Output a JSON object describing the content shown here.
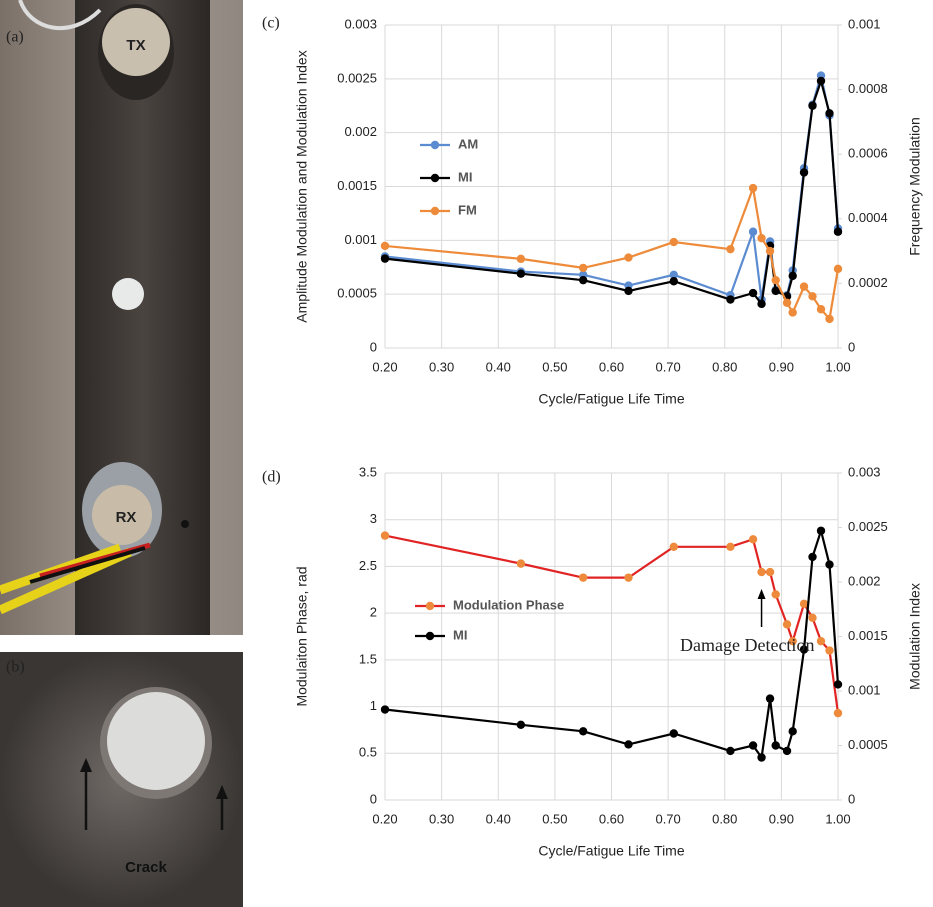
{
  "photos": {
    "a": {
      "label": "(a)",
      "texts": [
        "TX",
        "RX"
      ]
    },
    "b": {
      "label": "(b)",
      "texts": [
        "Crack"
      ]
    }
  },
  "chart_data": [
    {
      "type": "line",
      "panel_label": "(c)",
      "x_label": "Cycle/Fatigue Life Time",
      "y_label": "Amplitude Modulation and Modulation Index",
      "y2_label": "Frequency Modulation",
      "x": [
        0.2,
        0.44,
        0.55,
        0.63,
        0.71,
        0.81,
        0.85,
        0.865,
        0.88,
        0.89,
        0.91,
        0.92,
        0.94,
        0.955,
        0.97,
        0.985,
        1.0
      ],
      "xlim": [
        0.2,
        1.0
      ],
      "xticks": [
        {
          "value": 0.2,
          "label": "0.20"
        },
        {
          "value": 0.3,
          "label": "0.30"
        },
        {
          "value": 0.4,
          "label": "0.40"
        },
        {
          "value": 0.5,
          "label": "0.50"
        },
        {
          "value": 0.6,
          "label": "0.60"
        },
        {
          "value": 0.7,
          "label": "0.70"
        },
        {
          "value": 0.8,
          "label": "0.80"
        },
        {
          "value": 0.9,
          "label": "0.90"
        },
        {
          "value": 1.0,
          "label": "1.00"
        }
      ],
      "ylim": [
        0,
        0.003
      ],
      "yticks": [
        0,
        0.0005,
        0.001,
        0.0015,
        0.002,
        0.0025,
        0.003
      ],
      "y2lim": [
        0,
        0.001
      ],
      "y2ticks": [
        0,
        0.0002,
        0.0004,
        0.0006,
        0.0008,
        0.001
      ],
      "grid": true,
      "series": [
        {
          "name": "AM",
          "color": "#5b8bd0",
          "values": [
            0.00085,
            0.00071,
            0.00068,
            0.00058,
            0.00068,
            0.00049,
            0.00108,
            0.00045,
            0.00099,
            0.00054,
            0.00049,
            0.00072,
            0.00167,
            0.00226,
            0.00253,
            0.00216,
            0.00111
          ]
        },
        {
          "name": "MI",
          "color": "#000000",
          "values": [
            0.00083,
            0.00069,
            0.00063,
            0.00053,
            0.00062,
            0.00045,
            0.00051,
            0.00041,
            0.00095,
            0.00053,
            0.00048,
            0.00067,
            0.00163,
            0.00225,
            0.00248,
            0.00218,
            0.00108
          ]
        },
        {
          "name": "FM",
          "color": "#ed8b3a",
          "axis": "y2",
          "values": [
            0.000316,
            0.000276,
            0.000248,
            0.00028,
            0.000328,
            0.000306,
            0.000495,
            0.00034,
            0.0003,
            0.00021,
            0.00014,
            0.00011,
            0.00019,
            0.00016,
            0.00012,
            9e-05,
            0.000245
          ]
        }
      ]
    },
    {
      "type": "line",
      "panel_label": "(d)",
      "x_label": "Cycle/Fatigue Life Time",
      "y_label": "Modulaiton Phase, rad",
      "y2_label": "Modulation Index",
      "annotation": "Damage Detection",
      "x": [
        0.2,
        0.44,
        0.55,
        0.63,
        0.71,
        0.81,
        0.85,
        0.865,
        0.88,
        0.89,
        0.91,
        0.92,
        0.94,
        0.955,
        0.97,
        0.985,
        1.0
      ],
      "xlim": [
        0.2,
        1.0
      ],
      "xticks": [
        {
          "value": 0.2,
          "label": "0.20"
        },
        {
          "value": 0.3,
          "label": "0.30"
        },
        {
          "value": 0.4,
          "label": "0.40"
        },
        {
          "value": 0.5,
          "label": "0.50"
        },
        {
          "value": 0.6,
          "label": "0.60"
        },
        {
          "value": 0.7,
          "label": "0.70"
        },
        {
          "value": 0.8,
          "label": "0.80"
        },
        {
          "value": 0.9,
          "label": "0.90"
        },
        {
          "value": 1.0,
          "label": "1.00"
        }
      ],
      "ylim": [
        0,
        3.5
      ],
      "yticks": [
        0,
        0.5,
        1,
        1.5,
        2,
        2.5,
        3,
        3.5
      ],
      "y2lim": [
        0,
        0.003
      ],
      "y2ticks": [
        0,
        0.0005,
        0.001,
        0.0015,
        0.002,
        0.0025,
        0.003
      ],
      "grid": true,
      "series": [
        {
          "name": "Modulation Phase",
          "color": "#e02424",
          "marker_color": "#ee8a3c",
          "values": [
            2.83,
            2.53,
            2.38,
            2.38,
            2.71,
            2.71,
            2.79,
            2.44,
            2.44,
            2.2,
            1.88,
            1.7,
            2.1,
            1.95,
            1.7,
            1.6,
            0.93
          ]
        },
        {
          "name": "MI",
          "color": "#000000",
          "axis": "y2",
          "values": [
            0.00083,
            0.00069,
            0.00063,
            0.00051,
            0.00061,
            0.00045,
            0.0005,
            0.00039,
            0.00093,
            0.0005,
            0.00045,
            0.00063,
            0.00138,
            0.00223,
            0.00247,
            0.00216,
            0.00106
          ]
        }
      ]
    }
  ]
}
